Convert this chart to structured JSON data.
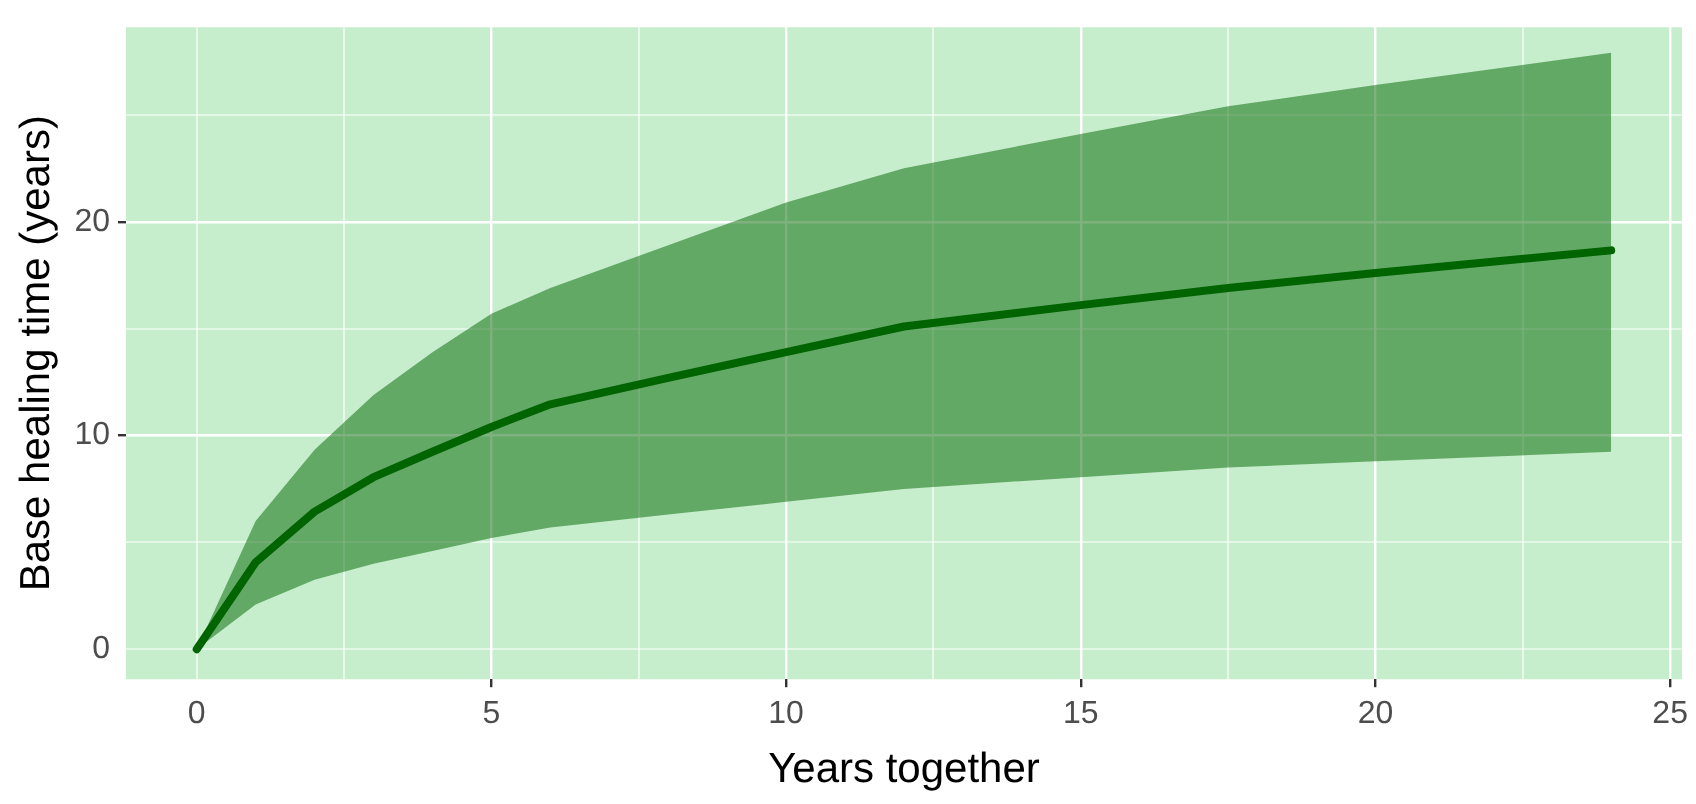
{
  "chart_data": {
    "type": "line",
    "xlabel": "Years together",
    "ylabel": "Base healing time (years)",
    "x": [
      0,
      1,
      2,
      3,
      4,
      5,
      6,
      8,
      10,
      12,
      15,
      17.5,
      20,
      24
    ],
    "series": [
      {
        "color": "#006400",
        "values": [
          0,
          4.07,
          6.44,
          8.05,
          9.24,
          10.4,
          11.46,
          12.7,
          13.9,
          15.1,
          16.1,
          16.9,
          17.6,
          18.66
        ],
        "lower": [
          0,
          2.1,
          3.25,
          4.0,
          4.6,
          5.2,
          5.7,
          6.3,
          6.9,
          7.5,
          8.05,
          8.5,
          8.8,
          9.24
        ],
        "upper": [
          0,
          6.0,
          9.33,
          11.9,
          13.9,
          15.7,
          16.9,
          18.9,
          20.9,
          22.5,
          24.1,
          25.4,
          26.4,
          27.9
        ]
      }
    ],
    "xlim": [
      -1.2,
      25.2
    ],
    "ylim": [
      -1.4,
      29.1
    ],
    "xticks": [
      0,
      {
        "value": 2.5,
        "label": null
      },
      5,
      {
        "value": 7.5,
        "label": null
      },
      10,
      {
        "value": 12.5,
        "label": null
      },
      15,
      {
        "value": 17.5,
        "label": null
      },
      20,
      {
        "value": 22.5,
        "label": null
      },
      25
    ],
    "yticks": [
      0,
      {
        "value": 5,
        "label": null
      },
      10,
      {
        "value": 15,
        "label": null
      },
      20,
      {
        "value": 25,
        "label": null
      }
    ],
    "grid": true,
    "legend": false,
    "marker": "none",
    "line_style": "solid"
  }
}
